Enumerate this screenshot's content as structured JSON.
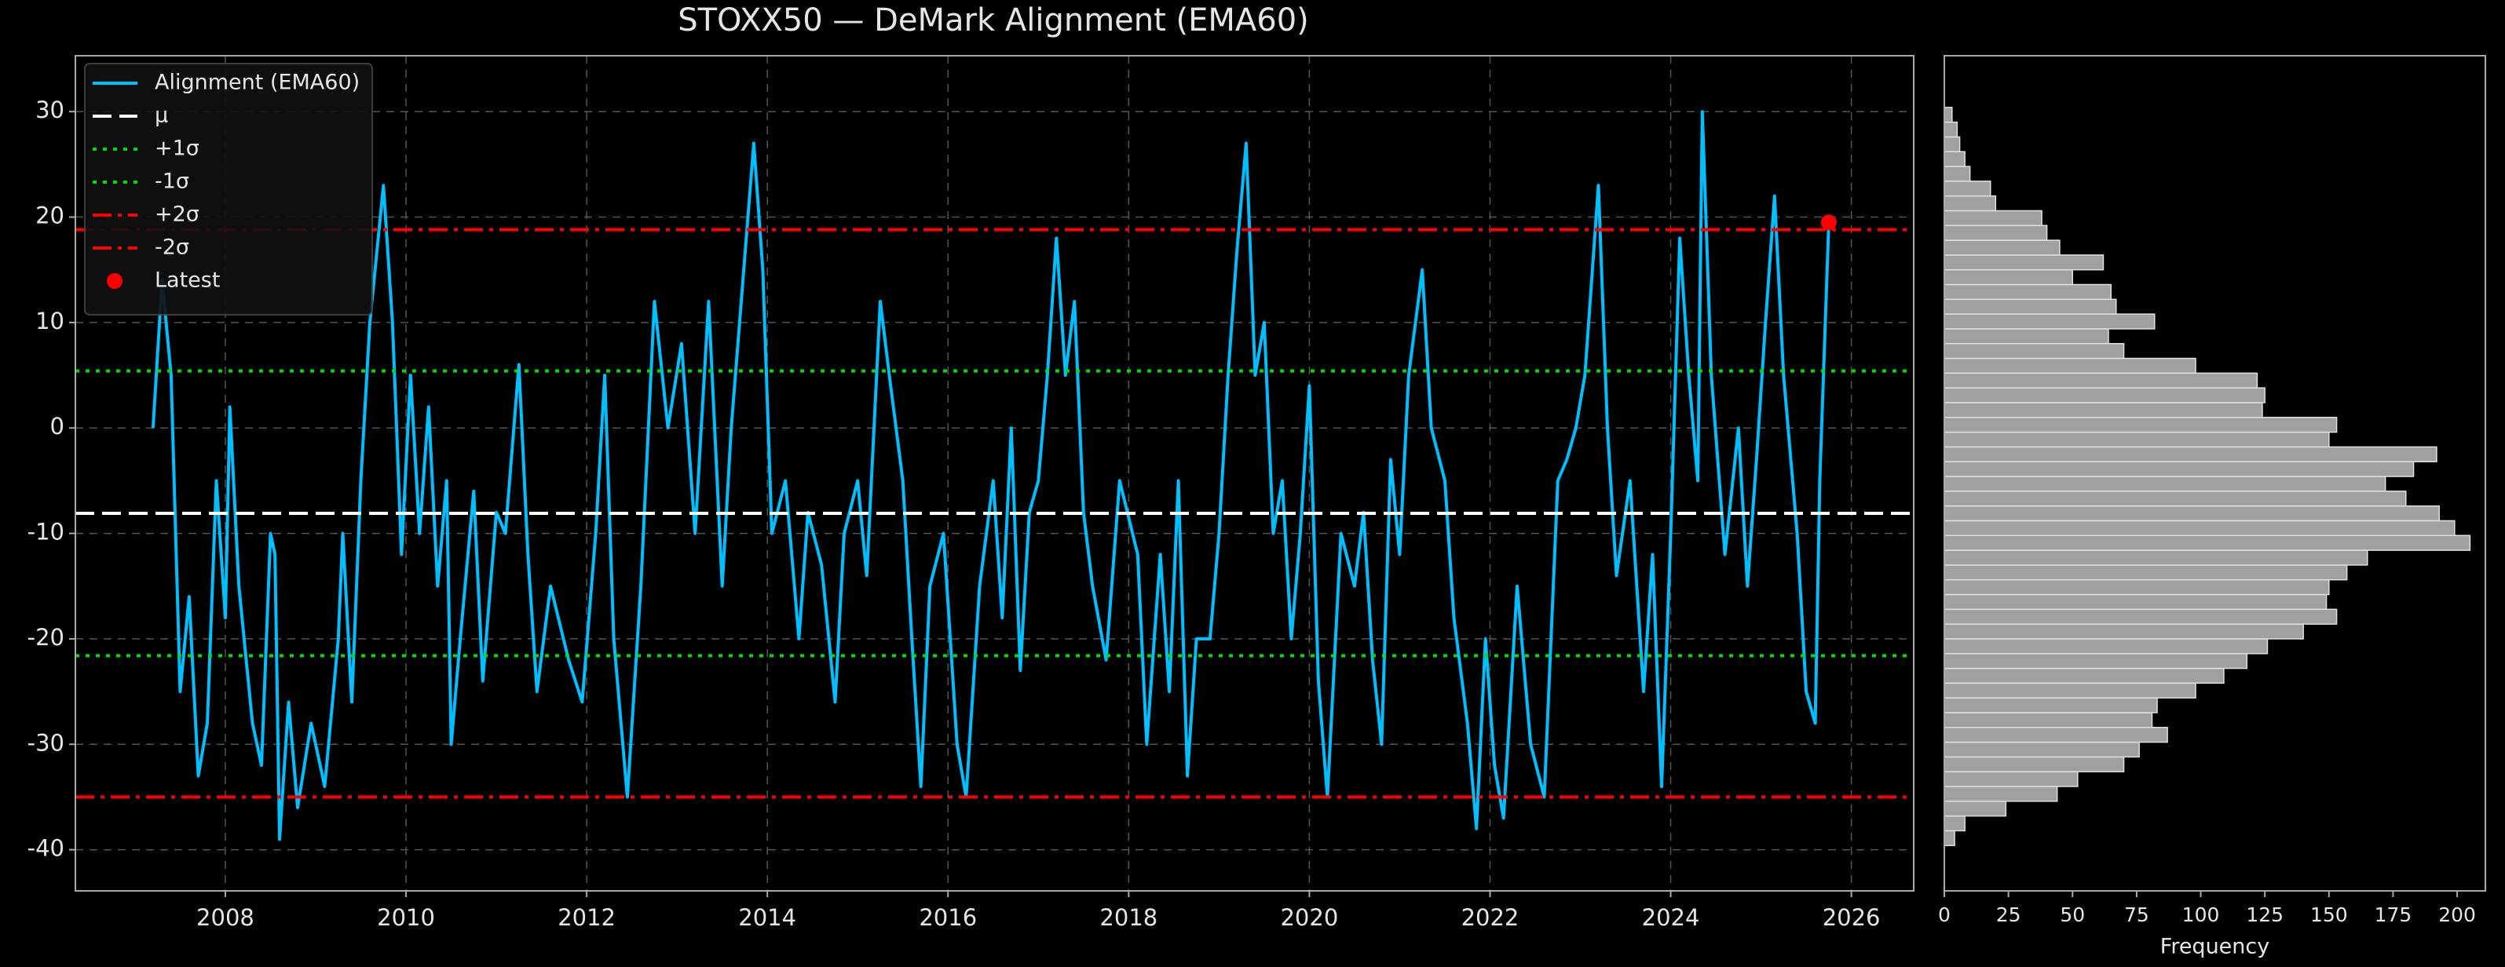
{
  "chart_data": [
    {
      "type": "line",
      "title": "STOXX50 — DeMark Alignment (EMA60)",
      "xlim": [
        2006.34,
        2026.69
      ],
      "xticks": [
        2008,
        2010,
        2012,
        2014,
        2016,
        2018,
        2020,
        2022,
        2024,
        2026
      ],
      "ylim": [
        -43.9,
        35.3
      ],
      "yticks": [
        -40,
        -30,
        -20,
        -10,
        0,
        10,
        20,
        30
      ],
      "grid": true,
      "legend": "upper left",
      "series": [
        {
          "name": "Alignment (EMA60)",
          "color": "#00bfff",
          "x": [
            2007.2,
            2007.3,
            2007.4,
            2007.5,
            2007.6,
            2007.7,
            2007.8,
            2007.9,
            2008.0,
            2008.05,
            2008.15,
            2008.3,
            2008.4,
            2008.5,
            2008.55,
            2008.6,
            2008.7,
            2008.8,
            2008.95,
            2009.1,
            2009.25,
            2009.3,
            2009.4,
            2009.5,
            2009.6,
            2009.75,
            2009.85,
            2009.95,
            2010.05,
            2010.15,
            2010.25,
            2010.35,
            2010.45,
            2010.5,
            2010.6,
            2010.75,
            2010.85,
            2011.0,
            2011.1,
            2011.25,
            2011.35,
            2011.45,
            2011.6,
            2011.8,
            2011.95,
            2012.1,
            2012.2,
            2012.3,
            2012.45,
            2012.6,
            2012.75,
            2012.9,
            2013.05,
            2013.2,
            2013.35,
            2013.5,
            2013.6,
            2013.85,
            2013.95,
            2014.05,
            2014.2,
            2014.35,
            2014.45,
            2014.6,
            2014.75,
            2014.85,
            2015.0,
            2015.1,
            2015.25,
            2015.35,
            2015.5,
            2015.6,
            2015.7,
            2015.8,
            2015.95,
            2016.1,
            2016.2,
            2016.35,
            2016.5,
            2016.6,
            2016.7,
            2016.8,
            2016.9,
            2017.0,
            2017.1,
            2017.2,
            2017.3,
            2017.4,
            2017.5,
            2017.6,
            2017.75,
            2017.9,
            2018.1,
            2018.2,
            2018.35,
            2018.45,
            2018.55,
            2018.65,
            2018.75,
            2018.9,
            2019.0,
            2019.1,
            2019.2,
            2019.3,
            2019.4,
            2019.5,
            2019.6,
            2019.7,
            2019.8,
            2019.9,
            2020.0,
            2020.1,
            2020.2,
            2020.35,
            2020.5,
            2020.6,
            2020.7,
            2020.8,
            2020.9,
            2021.0,
            2021.1,
            2021.25,
            2021.35,
            2021.5,
            2021.6,
            2021.75,
            2021.85,
            2021.95,
            2022.05,
            2022.15,
            2022.3,
            2022.45,
            2022.6,
            2022.75,
            2022.85,
            2022.95,
            2023.05,
            2023.2,
            2023.3,
            2023.4,
            2023.55,
            2023.7,
            2023.8,
            2023.9,
            2024.0,
            2024.1,
            2024.2,
            2024.3,
            2024.35,
            2024.45,
            2024.6,
            2024.75,
            2024.85,
            2024.95,
            2025.05,
            2025.15,
            2025.25,
            2025.4,
            2025.5,
            2025.6,
            2025.65,
            2025.75
          ],
          "values": [
            0,
            14,
            5,
            -25,
            -16,
            -33,
            -28,
            -5,
            -18,
            2,
            -15,
            -28,
            -32,
            -10,
            -12,
            -39,
            -26,
            -36,
            -28,
            -34,
            -20,
            -10,
            -26,
            -5,
            10,
            23,
            10,
            -12,
            5,
            -10,
            2,
            -15,
            -5,
            -30,
            -20,
            -6,
            -24,
            -8,
            -10,
            6,
            -12,
            -25,
            -15,
            -22,
            -26,
            -10,
            5,
            -20,
            -35,
            -15,
            12,
            0,
            8,
            -10,
            12,
            -15,
            0,
            27,
            15,
            -10,
            -5,
            -20,
            -8,
            -13,
            -26,
            -10,
            -5,
            -14,
            12,
            5,
            -5,
            -20,
            -34,
            -15,
            -10,
            -30,
            -35,
            -15,
            -5,
            -18,
            0,
            -23,
            -8,
            -5,
            5,
            18,
            5,
            12,
            -8,
            -15,
            -22,
            -5,
            -12,
            -30,
            -12,
            -25,
            -5,
            -33,
            -20,
            -20,
            -10,
            5,
            17,
            27,
            5,
            10,
            -10,
            -5,
            -20,
            -10,
            4,
            -24,
            -35,
            -10,
            -15,
            -8,
            -22,
            -30,
            -3,
            -12,
            5,
            15,
            0,
            -5,
            -18,
            -28,
            -38,
            -20,
            -32,
            -37,
            -15,
            -30,
            -35,
            -5,
            -3,
            0,
            5,
            23,
            0,
            -14,
            -5,
            -25,
            -12,
            -34,
            -10,
            18,
            5,
            -5,
            30,
            5,
            -12,
            0,
            -15,
            -3,
            10,
            22,
            5,
            -10,
            -25,
            -28,
            -5,
            19.5
          ]
        }
      ],
      "hlines": [
        {
          "name": "μ",
          "value": -8.1,
          "color": "#ffffff",
          "style": "dashed"
        },
        {
          "name": "+1σ",
          "value": 5.4,
          "color": "#00dd00",
          "style": "dotted"
        },
        {
          "name": "-1σ",
          "value": -21.6,
          "color": "#00dd00",
          "style": "dotted"
        },
        {
          "name": "+2σ",
          "value": 18.8,
          "color": "#ff0000",
          "style": "dashdot"
        },
        {
          "name": "-2σ",
          "value": -35,
          "color": "#ff0000",
          "style": "dashdot"
        }
      ],
      "latest": {
        "name": "Latest",
        "x": 2025.75,
        "y": 19.5,
        "color": "#ff0000"
      }
    },
    {
      "type": "histogram",
      "orientation": "horizontal",
      "xlabel": "Frequency",
      "xlim": [
        0,
        211
      ],
      "xticks": [
        0,
        25,
        50,
        75,
        100,
        125,
        150,
        175,
        200
      ],
      "ylim": [
        -43.9,
        35.3
      ],
      "color": "#a0a0a0",
      "edgecolor": "#e0e0e0",
      "bins": [
        -39.6,
        -38.2,
        -36.8,
        -35.4,
        -34,
        -32.6,
        -31.2,
        -29.8,
        -28.4,
        -27,
        -25.6,
        -24.2,
        -22.8,
        -21.4,
        -20,
        -18.6,
        -17.2,
        -15.8,
        -14.4,
        -13,
        -11.6,
        -10.2,
        -8.8,
        -7.4,
        -6,
        -4.6,
        -3.2,
        -1.8,
        -0.4,
        1,
        2.4,
        3.8,
        5.2,
        6.6,
        8,
        9.4,
        10.8,
        12.2,
        13.6,
        15,
        16.4,
        17.8,
        19.2,
        20.6,
        22,
        23.4,
        24.8,
        26.2,
        27.6,
        29,
        30.4
      ],
      "counts": [
        4,
        8,
        24,
        44,
        52,
        70,
        76,
        87,
        81,
        83,
        98,
        109,
        118,
        126,
        140,
        153,
        149,
        150,
        157,
        165,
        205,
        199,
        193,
        180,
        172,
        183,
        192,
        150,
        153,
        124,
        125,
        122,
        98,
        70,
        64,
        82,
        67,
        65,
        50,
        62,
        45,
        40,
        38,
        20,
        18,
        10,
        8,
        6,
        5,
        3
      ]
    }
  ]
}
